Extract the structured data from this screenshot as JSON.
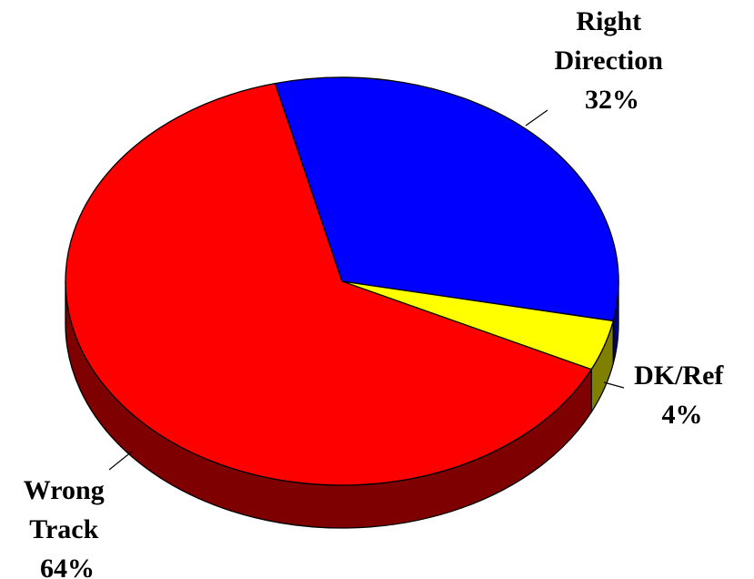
{
  "chart_data": {
    "type": "pie",
    "style": "3d",
    "title": "",
    "slices": [
      {
        "label": "Right Direction",
        "label_lines": [
          "Right",
          "Direction"
        ],
        "value": 32,
        "display": "32%",
        "color": "#0000FF",
        "side_color": "#00007F"
      },
      {
        "label": "DK/Ref",
        "label_lines": [
          "DK/Ref"
        ],
        "value": 4,
        "display": "4%",
        "color": "#FFFF00",
        "side_color": "#7F7F00"
      },
      {
        "label": "Wrong Track",
        "label_lines": [
          "Wrong",
          "Track"
        ],
        "value": 64,
        "display": "64%",
        "color": "#FF0000",
        "side_color": "#7F0000"
      }
    ]
  }
}
